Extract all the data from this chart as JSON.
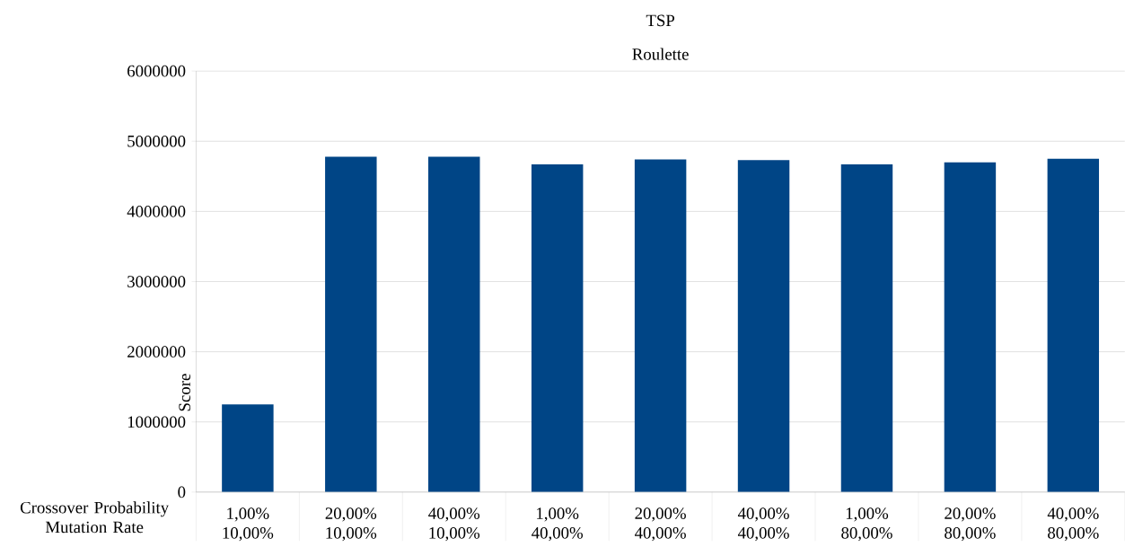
{
  "chart_data": {
    "type": "bar",
    "title": "TSP",
    "subtitle": "Roulette",
    "ylabel": "Score",
    "xlabel": "Crossover Probability Mutation Rate",
    "categories": [
      "1,00% 10,00%",
      "20,00% 10,00%",
      "40,00% 10,00%",
      "1,00% 40,00%",
      "20,00% 40,00%",
      "40,00% 40,00%",
      "1,00% 80,00%",
      "20,00% 80,00%",
      "40,00% 80,00%"
    ],
    "values": [
      1250000,
      4780000,
      4780000,
      4670000,
      4740000,
      4730000,
      4670000,
      4700000,
      4750000
    ],
    "color": "#004586",
    "ylim": [
      0,
      6000000
    ],
    "yticks": [
      0,
      1000000,
      2000000,
      3000000,
      4000000,
      5000000,
      6000000
    ],
    "grid": "y"
  }
}
